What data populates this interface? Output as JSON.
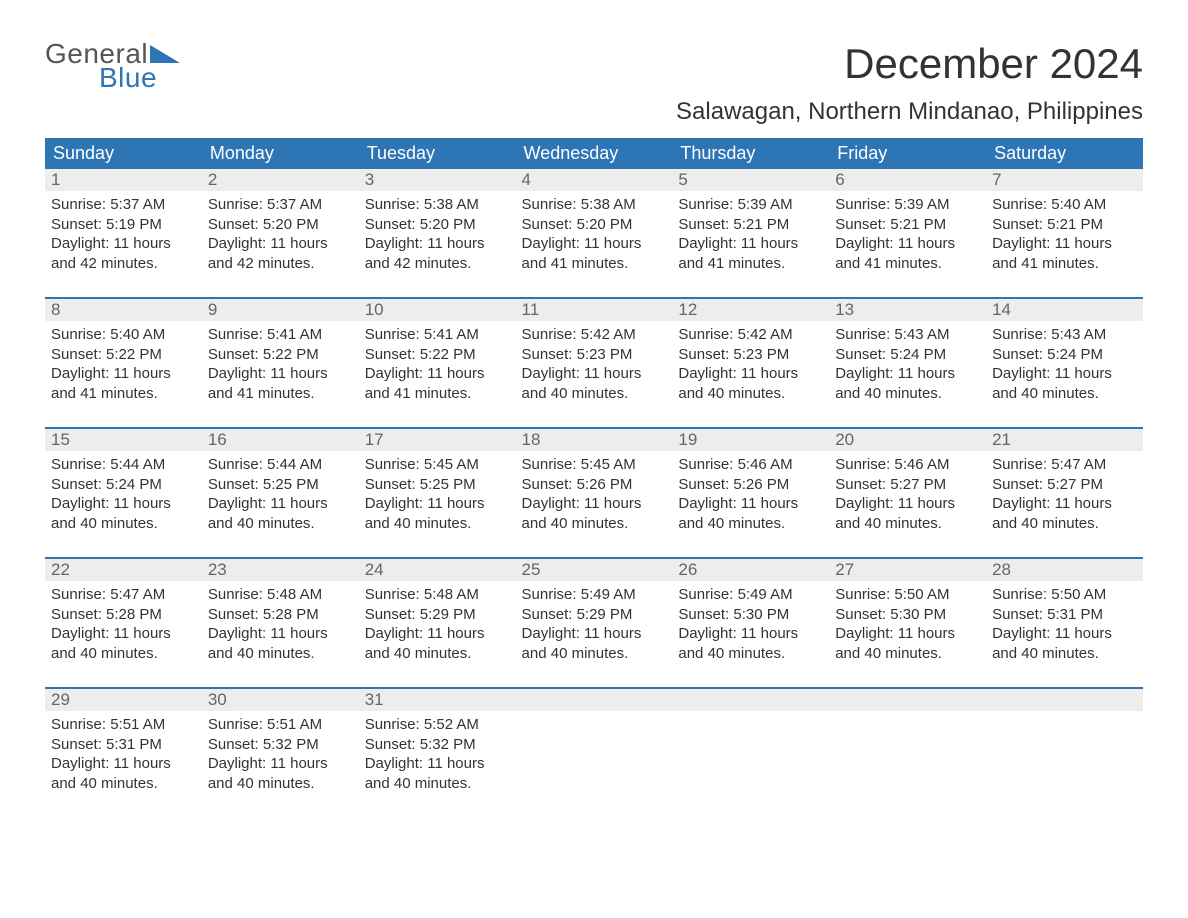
{
  "brand": {
    "word1": "General",
    "word2": "Blue",
    "text_color_gray": "#555555",
    "text_color_blue": "#2e75b6"
  },
  "title": "December 2024",
  "subtitle": "Salawagan, Northern Mindanao, Philippines",
  "colors": {
    "header_bg": "#2e75b6",
    "header_text": "#ffffff",
    "daynum_bg": "#ededed",
    "daynum_text": "#666666",
    "body_text": "#333333",
    "week_divider": "#2e75b6",
    "page_bg": "#ffffff"
  },
  "typography": {
    "title_fontsize": 42,
    "subtitle_fontsize": 24,
    "header_fontsize": 18,
    "daynum_fontsize": 17,
    "body_fontsize": 15
  },
  "day_headers": [
    "Sunday",
    "Monday",
    "Tuesday",
    "Wednesday",
    "Thursday",
    "Friday",
    "Saturday"
  ],
  "weeks": [
    {
      "nums": [
        "1",
        "2",
        "3",
        "4",
        "5",
        "6",
        "7"
      ],
      "cells": [
        {
          "sunrise": "Sunrise: 5:37 AM",
          "sunset": "Sunset: 5:19 PM",
          "d1": "Daylight: 11 hours",
          "d2": "and 42 minutes."
        },
        {
          "sunrise": "Sunrise: 5:37 AM",
          "sunset": "Sunset: 5:20 PM",
          "d1": "Daylight: 11 hours",
          "d2": "and 42 minutes."
        },
        {
          "sunrise": "Sunrise: 5:38 AM",
          "sunset": "Sunset: 5:20 PM",
          "d1": "Daylight: 11 hours",
          "d2": "and 42 minutes."
        },
        {
          "sunrise": "Sunrise: 5:38 AM",
          "sunset": "Sunset: 5:20 PM",
          "d1": "Daylight: 11 hours",
          "d2": "and 41 minutes."
        },
        {
          "sunrise": "Sunrise: 5:39 AM",
          "sunset": "Sunset: 5:21 PM",
          "d1": "Daylight: 11 hours",
          "d2": "and 41 minutes."
        },
        {
          "sunrise": "Sunrise: 5:39 AM",
          "sunset": "Sunset: 5:21 PM",
          "d1": "Daylight: 11 hours",
          "d2": "and 41 minutes."
        },
        {
          "sunrise": "Sunrise: 5:40 AM",
          "sunset": "Sunset: 5:21 PM",
          "d1": "Daylight: 11 hours",
          "d2": "and 41 minutes."
        }
      ]
    },
    {
      "nums": [
        "8",
        "9",
        "10",
        "11",
        "12",
        "13",
        "14"
      ],
      "cells": [
        {
          "sunrise": "Sunrise: 5:40 AM",
          "sunset": "Sunset: 5:22 PM",
          "d1": "Daylight: 11 hours",
          "d2": "and 41 minutes."
        },
        {
          "sunrise": "Sunrise: 5:41 AM",
          "sunset": "Sunset: 5:22 PM",
          "d1": "Daylight: 11 hours",
          "d2": "and 41 minutes."
        },
        {
          "sunrise": "Sunrise: 5:41 AM",
          "sunset": "Sunset: 5:22 PM",
          "d1": "Daylight: 11 hours",
          "d2": "and 41 minutes."
        },
        {
          "sunrise": "Sunrise: 5:42 AM",
          "sunset": "Sunset: 5:23 PM",
          "d1": "Daylight: 11 hours",
          "d2": "and 40 minutes."
        },
        {
          "sunrise": "Sunrise: 5:42 AM",
          "sunset": "Sunset: 5:23 PM",
          "d1": "Daylight: 11 hours",
          "d2": "and 40 minutes."
        },
        {
          "sunrise": "Sunrise: 5:43 AM",
          "sunset": "Sunset: 5:24 PM",
          "d1": "Daylight: 11 hours",
          "d2": "and 40 minutes."
        },
        {
          "sunrise": "Sunrise: 5:43 AM",
          "sunset": "Sunset: 5:24 PM",
          "d1": "Daylight: 11 hours",
          "d2": "and 40 minutes."
        }
      ]
    },
    {
      "nums": [
        "15",
        "16",
        "17",
        "18",
        "19",
        "20",
        "21"
      ],
      "cells": [
        {
          "sunrise": "Sunrise: 5:44 AM",
          "sunset": "Sunset: 5:24 PM",
          "d1": "Daylight: 11 hours",
          "d2": "and 40 minutes."
        },
        {
          "sunrise": "Sunrise: 5:44 AM",
          "sunset": "Sunset: 5:25 PM",
          "d1": "Daylight: 11 hours",
          "d2": "and 40 minutes."
        },
        {
          "sunrise": "Sunrise: 5:45 AM",
          "sunset": "Sunset: 5:25 PM",
          "d1": "Daylight: 11 hours",
          "d2": "and 40 minutes."
        },
        {
          "sunrise": "Sunrise: 5:45 AM",
          "sunset": "Sunset: 5:26 PM",
          "d1": "Daylight: 11 hours",
          "d2": "and 40 minutes."
        },
        {
          "sunrise": "Sunrise: 5:46 AM",
          "sunset": "Sunset: 5:26 PM",
          "d1": "Daylight: 11 hours",
          "d2": "and 40 minutes."
        },
        {
          "sunrise": "Sunrise: 5:46 AM",
          "sunset": "Sunset: 5:27 PM",
          "d1": "Daylight: 11 hours",
          "d2": "and 40 minutes."
        },
        {
          "sunrise": "Sunrise: 5:47 AM",
          "sunset": "Sunset: 5:27 PM",
          "d1": "Daylight: 11 hours",
          "d2": "and 40 minutes."
        }
      ]
    },
    {
      "nums": [
        "22",
        "23",
        "24",
        "25",
        "26",
        "27",
        "28"
      ],
      "cells": [
        {
          "sunrise": "Sunrise: 5:47 AM",
          "sunset": "Sunset: 5:28 PM",
          "d1": "Daylight: 11 hours",
          "d2": "and 40 minutes."
        },
        {
          "sunrise": "Sunrise: 5:48 AM",
          "sunset": "Sunset: 5:28 PM",
          "d1": "Daylight: 11 hours",
          "d2": "and 40 minutes."
        },
        {
          "sunrise": "Sunrise: 5:48 AM",
          "sunset": "Sunset: 5:29 PM",
          "d1": "Daylight: 11 hours",
          "d2": "and 40 minutes."
        },
        {
          "sunrise": "Sunrise: 5:49 AM",
          "sunset": "Sunset: 5:29 PM",
          "d1": "Daylight: 11 hours",
          "d2": "and 40 minutes."
        },
        {
          "sunrise": "Sunrise: 5:49 AM",
          "sunset": "Sunset: 5:30 PM",
          "d1": "Daylight: 11 hours",
          "d2": "and 40 minutes."
        },
        {
          "sunrise": "Sunrise: 5:50 AM",
          "sunset": "Sunset: 5:30 PM",
          "d1": "Daylight: 11 hours",
          "d2": "and 40 minutes."
        },
        {
          "sunrise": "Sunrise: 5:50 AM",
          "sunset": "Sunset: 5:31 PM",
          "d1": "Daylight: 11 hours",
          "d2": "and 40 minutes."
        }
      ]
    },
    {
      "nums": [
        "29",
        "30",
        "31",
        "",
        "",
        "",
        ""
      ],
      "cells": [
        {
          "sunrise": "Sunrise: 5:51 AM",
          "sunset": "Sunset: 5:31 PM",
          "d1": "Daylight: 11 hours",
          "d2": "and 40 minutes."
        },
        {
          "sunrise": "Sunrise: 5:51 AM",
          "sunset": "Sunset: 5:32 PM",
          "d1": "Daylight: 11 hours",
          "d2": "and 40 minutes."
        },
        {
          "sunrise": "Sunrise: 5:52 AM",
          "sunset": "Sunset: 5:32 PM",
          "d1": "Daylight: 11 hours",
          "d2": "and 40 minutes."
        },
        {
          "sunrise": "",
          "sunset": "",
          "d1": "",
          "d2": ""
        },
        {
          "sunrise": "",
          "sunset": "",
          "d1": "",
          "d2": ""
        },
        {
          "sunrise": "",
          "sunset": "",
          "d1": "",
          "d2": ""
        },
        {
          "sunrise": "",
          "sunset": "",
          "d1": "",
          "d2": ""
        }
      ]
    }
  ]
}
